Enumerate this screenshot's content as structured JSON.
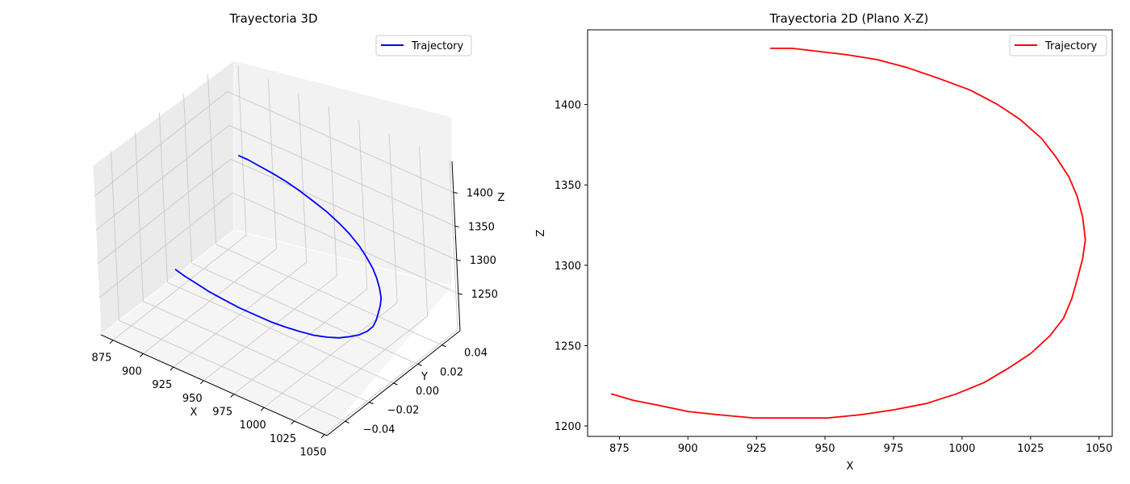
{
  "chart_data": [
    {
      "type": "line",
      "projection": "3d",
      "title": "Trayectoria 3D",
      "xlabel": "X",
      "ylabel": "Y",
      "zlabel": "Z",
      "xticks": [
        "875",
        "900",
        "925",
        "950",
        "975",
        "1000",
        "1025",
        "1050"
      ],
      "yticks": [
        "−0.04",
        "−0.02",
        "0.00",
        "0.02",
        "0.04"
      ],
      "zticks": [
        "1250",
        "1300",
        "1350",
        "1400"
      ],
      "xlim": [
        865,
        1052
      ],
      "ylim": [
        -0.055,
        0.055
      ],
      "zlim": [
        1195,
        1446
      ],
      "grid": true,
      "legend": "top-right",
      "line_color": "#0000ff",
      "series": [
        {
          "name": "Trajectory",
          "x": [
            930,
            938,
            948,
            958,
            969,
            980,
            992,
            1003,
            1013,
            1021,
            1029,
            1034,
            1039,
            1042,
            1044,
            1045,
            1044,
            1042,
            1040,
            1037,
            1032,
            1025,
            1017,
            1008,
            998,
            987,
            975,
            963,
            951,
            937,
            924,
            911,
            900,
            889,
            880,
            872
          ],
          "y": [
            0,
            0,
            0,
            0,
            0,
            0,
            0,
            0,
            0,
            0,
            0,
            0,
            0,
            0,
            0,
            0,
            0,
            0,
            0,
            0,
            0,
            0,
            0,
            0,
            0,
            0,
            0,
            0,
            0,
            0,
            0,
            0,
            0,
            0,
            0,
            0
          ],
          "z": [
            1435,
            1435,
            1433,
            1431,
            1428,
            1423,
            1416,
            1409,
            1400,
            1391,
            1379,
            1368,
            1355,
            1343,
            1330,
            1316,
            1304,
            1291,
            1279,
            1267,
            1256,
            1245,
            1236,
            1227,
            1220,
            1214,
            1210,
            1207,
            1205,
            1205,
            1205,
            1207,
            1209,
            1213,
            1216,
            1220
          ]
        }
      ]
    },
    {
      "type": "line",
      "title": "Trayectoria 2D (Plano X-Z)",
      "xlabel": "X",
      "ylabel": "Z",
      "xticks": [
        "875",
        "900",
        "925",
        "950",
        "975",
        "1000",
        "1025",
        "1050"
      ],
      "yticks": [
        "1200",
        "1250",
        "1300",
        "1350",
        "1400"
      ],
      "xlim": [
        863.4,
        1054.8
      ],
      "ylim": [
        1193.5,
        1446.5
      ],
      "grid": false,
      "legend": "top-right",
      "line_color": "#ff0000",
      "series": [
        {
          "name": "Trajectory",
          "x": [
            930,
            938,
            948,
            958,
            969,
            980,
            992,
            1003,
            1013,
            1021,
            1029,
            1034,
            1039,
            1042,
            1044,
            1045,
            1044,
            1042,
            1040,
            1037,
            1032,
            1025,
            1017,
            1008,
            998,
            987,
            975,
            963,
            951,
            937,
            924,
            911,
            900,
            889,
            880,
            872
          ],
          "z": [
            1435,
            1435,
            1433,
            1431,
            1428,
            1423,
            1416,
            1409,
            1400,
            1391,
            1379,
            1368,
            1355,
            1343,
            1330,
            1316,
            1304,
            1291,
            1279,
            1267,
            1256,
            1245,
            1236,
            1227,
            1220,
            1214,
            1210,
            1207,
            1205,
            1205,
            1205,
            1207,
            1209,
            1213,
            1216,
            1220
          ]
        }
      ]
    }
  ]
}
